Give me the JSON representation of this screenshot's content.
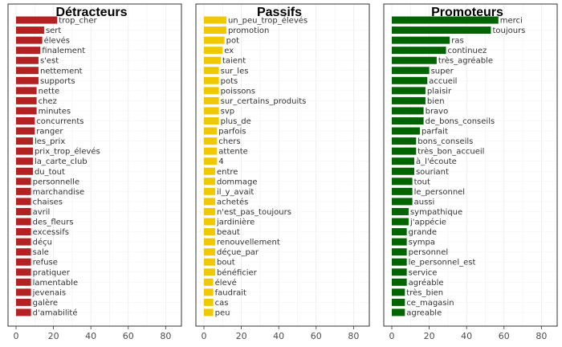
{
  "chart_data": [
    {
      "type": "bar",
      "orientation": "horizontal",
      "title": "Détracteurs",
      "color": "#b22222",
      "xlim": [
        0,
        85
      ],
      "xticks": [
        0,
        20,
        40,
        60,
        80
      ],
      "grid": true,
      "categories": [
        "trop_cher",
        "sert",
        "élevés",
        "finalement",
        "s'est",
        "nettement",
        "supports",
        "nette",
        "chez",
        "minutes",
        "concurrents",
        "ranger",
        "les_prix",
        "prix_trop_élevés",
        "la_carte_club",
        "du_tout",
        "personnelle",
        "marchandise",
        "chaises",
        "avril",
        "des_fleurs",
        "excessifs",
        "déçu",
        "sale",
        "refuse",
        "pratiquer",
        "lamentable",
        "jevenais",
        "galère",
        "d'amabilité"
      ],
      "values": [
        22,
        15,
        14,
        13,
        12,
        12,
        12,
        11,
        11,
        11,
        10,
        10,
        9,
        9,
        9,
        9,
        8,
        8,
        8,
        8,
        8,
        8,
        8,
        8,
        8,
        8,
        8,
        8,
        8,
        8
      ]
    },
    {
      "type": "bar",
      "orientation": "horizontal",
      "title": "Passifs",
      "color": "#f0c800",
      "xlim": [
        0,
        85
      ],
      "xticks": [
        0,
        20,
        40,
        60,
        80
      ],
      "grid": true,
      "categories": [
        "un_peu_trop_élevés",
        "promotion",
        "pot",
        "ex",
        "taient",
        "sur_les",
        "pots",
        "poissons",
        "sur_certains_produits",
        "svp",
        "plus_de",
        "parfois",
        "chers",
        "attente",
        "4",
        "entre",
        "dommage",
        "il_y_avait",
        "achetés",
        "n'est_pas_toujours",
        "jardinière",
        "beaut",
        "renouvellement",
        "déçue_par",
        "bout",
        "bénéficier",
        "élevé",
        "faudrait",
        "cas",
        "peu"
      ],
      "values": [
        12,
        12,
        11,
        10,
        9,
        8,
        8,
        8,
        8,
        8,
        8,
        7,
        7,
        7,
        7,
        6,
        6,
        6,
        6,
        6,
        6,
        6,
        6,
        6,
        6,
        6,
        5,
        5,
        5,
        5
      ]
    },
    {
      "type": "bar",
      "orientation": "horizontal",
      "title": "Promoteurs",
      "color": "#006400",
      "xlim": [
        0,
        85
      ],
      "xticks": [
        0,
        20,
        40,
        60,
        80
      ],
      "grid": true,
      "categories": [
        "merci",
        "toujours",
        "ras",
        "continuez",
        "très_agréable",
        "super",
        "accueil",
        "plaisir",
        "bien",
        "bravo",
        "de_bons_conseils",
        "parfait",
        "bons_conseils",
        "très_bon_accueil",
        "à_l'écoute",
        "souriant",
        "tout",
        "le_personnel",
        "aussi",
        "sympathique",
        "j'appécie",
        "grande",
        "sympa",
        "personnel",
        "le_personnel_est",
        "service",
        "agréable",
        "très_bien",
        "ce_magasin",
        "agreable"
      ],
      "values": [
        57,
        53,
        31,
        29,
        24,
        20,
        19,
        18,
        18,
        17,
        17,
        15,
        13,
        13,
        12,
        12,
        11,
        11,
        11,
        9,
        9,
        8,
        8,
        8,
        8,
        8,
        8,
        7,
        7,
        7
      ]
    }
  ]
}
